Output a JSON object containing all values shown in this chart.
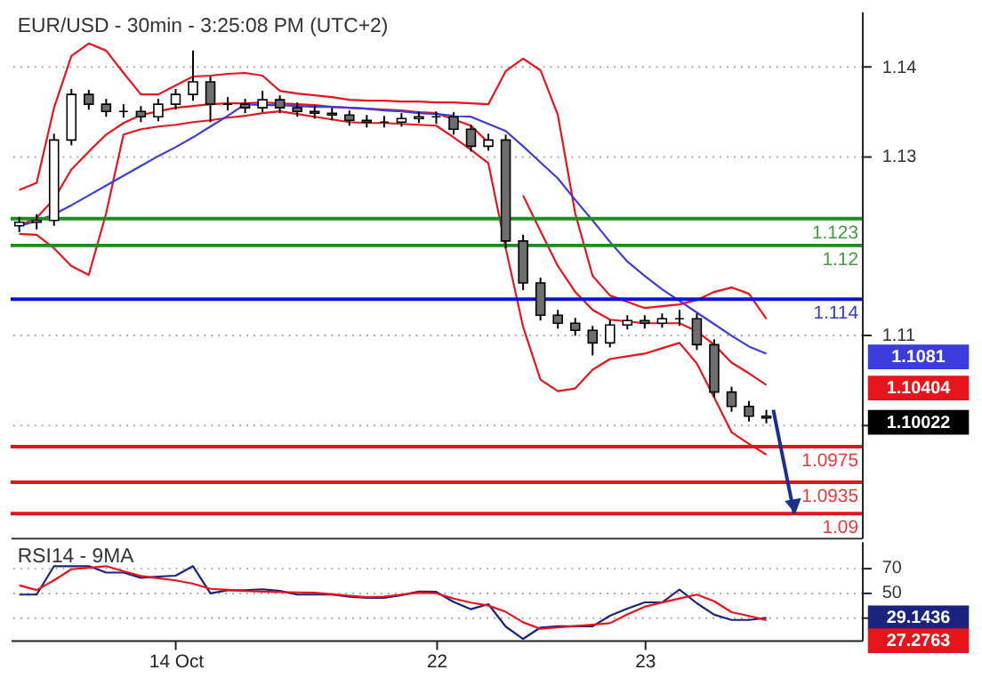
{
  "chart_data": [
    {
      "type": "candlestick",
      "title": "EUR/USD - 30min - 3:25:08 PM (UTC+2)",
      "color": "#000000",
      "categories": [
        null,
        null,
        null,
        null,
        null,
        null,
        null,
        null,
        null,
        null,
        null,
        null,
        null,
        null,
        null,
        null,
        null,
        null,
        null,
        null,
        null,
        null,
        null,
        null,
        null,
        null,
        null,
        null,
        null,
        null,
        null,
        null,
        null,
        null,
        null,
        null,
        null,
        null,
        null,
        null,
        null,
        null,
        null,
        null,
        null,
        null,
        null,
        null,
        null
      ],
      "ohlc": [
        [
          1.1222,
          1.1232,
          1.1215,
          1.1226
        ],
        [
          1.1226,
          1.1235,
          1.1218,
          1.1228
        ],
        [
          1.1228,
          1.1325,
          1.1222,
          1.1318
        ],
        [
          1.1318,
          1.1375,
          1.1312,
          1.1369
        ],
        [
          1.1369,
          1.1374,
          1.1352,
          1.1358
        ],
        [
          1.1358,
          1.1364,
          1.1344,
          1.135
        ],
        [
          1.135,
          1.1358,
          1.1343,
          1.135
        ],
        [
          1.135,
          1.1356,
          1.1338,
          1.1344
        ],
        [
          1.1344,
          1.1364,
          1.1339,
          1.1358
        ],
        [
          1.1358,
          1.1375,
          1.1352,
          1.1369
        ],
        [
          1.1369,
          1.1418,
          1.1362,
          1.1383
        ],
        [
          1.1383,
          1.1389,
          1.1338,
          1.1358
        ],
        [
          1.1358,
          1.1366,
          1.1351,
          1.1358
        ],
        [
          1.1358,
          1.1364,
          1.1348,
          1.1354
        ],
        [
          1.1354,
          1.1373,
          1.1349,
          1.1363
        ],
        [
          1.1363,
          1.1368,
          1.1348,
          1.1354
        ],
        [
          1.1354,
          1.136,
          1.1344,
          1.135
        ],
        [
          1.135,
          1.1356,
          1.1342,
          1.1348
        ],
        [
          1.1348,
          1.1354,
          1.134,
          1.1346
        ],
        [
          1.1346,
          1.1351,
          1.1334,
          1.134
        ],
        [
          1.134,
          1.1346,
          1.1332,
          1.1338
        ],
        [
          1.1338,
          1.1345,
          1.1332,
          1.1338
        ],
        [
          1.1338,
          1.1348,
          1.1333,
          1.1342
        ],
        [
          1.1342,
          1.135,
          1.1337,
          1.1344
        ],
        [
          1.1344,
          1.135,
          1.1336,
          1.1344
        ],
        [
          1.1344,
          1.1349,
          1.1324,
          1.133
        ],
        [
          1.133,
          1.1335,
          1.1305,
          1.1311
        ],
        [
          1.1311,
          1.1325,
          1.1306,
          1.1318
        ],
        [
          1.1318,
          1.1324,
          1.1197,
          1.1205
        ],
        [
          1.1205,
          1.1212,
          1.115,
          1.1158
        ],
        [
          1.1158,
          1.1164,
          1.1116,
          1.1122
        ],
        [
          1.1122,
          1.1128,
          1.1107,
          1.1113
        ],
        [
          1.1113,
          1.1119,
          1.1099,
          1.1105
        ],
        [
          1.1105,
          1.111,
          1.1077,
          1.1091
        ],
        [
          1.1091,
          1.1117,
          1.1086,
          1.1111
        ],
        [
          1.1111,
          1.1122,
          1.1106,
          1.1116
        ],
        [
          1.1116,
          1.1122,
          1.1107,
          1.1113
        ],
        [
          1.1113,
          1.1124,
          1.1108,
          1.1118
        ],
        [
          1.1118,
          1.1128,
          1.111,
          1.1118
        ],
        [
          1.1118,
          1.1124,
          1.1083,
          1.1089
        ],
        [
          1.1089,
          1.1095,
          1.103,
          1.1036
        ],
        [
          1.1036,
          1.1042,
          1.1014,
          1.102
        ],
        [
          1.102,
          1.1026,
          1.1003,
          1.1009
        ],
        [
          1.1009,
          1.1016,
          1.1001,
          1.1007
        ],
        null,
        null,
        null,
        null,
        null
      ],
      "series": [
        {
          "type": "line",
          "color": "#e8141c",
          "values": [
            1.1262,
            1.127,
            1.1354,
            1.1412,
            1.1426,
            1.1418,
            1.1393,
            1.1369,
            1.1369,
            1.1379,
            1.1389,
            1.139,
            1.1392,
            1.1393,
            1.139,
            1.1373,
            1.137,
            1.1368,
            1.1366,
            1.1363,
            1.1362,
            1.1362,
            1.1361,
            1.1361,
            1.136,
            1.136,
            1.1359,
            1.1358,
            1.1395,
            1.1409,
            1.1396,
            1.1346,
            1.1236,
            1.1166,
            1.1144,
            1.1137,
            1.113,
            1.1132,
            1.1134,
            1.1139,
            1.1148,
            1.1153,
            1.1146,
            1.1118,
            null,
            null,
            null,
            null,
            null
          ]
        },
        {
          "type": "line",
          "color": "#e8141c",
          "values": [
            1.1222,
            1.1231,
            1.1252,
            1.1285,
            1.1305,
            1.1324,
            1.1337,
            1.1346,
            1.135,
            1.1354,
            1.1356,
            1.1358,
            1.1359,
            1.1359,
            1.136,
            1.1359,
            1.1358,
            1.1357,
            1.1355,
            1.1354,
            1.1353,
            1.1352,
            1.1351,
            1.1349,
            1.1348,
            1.1341,
            1.1334,
            1.1315,
            null,
            1.1256,
            1.1216,
            1.1177,
            1.1148,
            1.1128,
            1.1117,
            1.1115,
            1.1113,
            1.1113,
            1.1113,
            1.1104,
            1.1089,
            1.1069,
            1.1057,
            1.1044,
            null,
            null,
            null,
            null,
            null
          ]
        },
        {
          "type": "line",
          "color": "#e8141c",
          "values": [
            1.1213,
            1.1212,
            1.1197,
            1.1177,
            1.1167,
            1.1236,
            1.1324,
            1.133,
            1.1333,
            1.1335,
            1.1338,
            1.134,
            1.1343,
            1.1345,
            1.1348,
            1.135,
            1.1347,
            1.1344,
            1.1341,
            1.1338,
            1.1337,
            1.1337,
            1.1336,
            1.1335,
            1.1334,
            1.1321,
            1.1307,
            1.1292,
            1.1197,
            1.1109,
            1.105,
            1.1037,
            1.104,
            1.1061,
            1.1073,
            1.1076,
            1.1079,
            1.1085,
            1.1091,
            1.1068,
            1.103,
            1.0991,
            1.0978,
            1.0966,
            null,
            null,
            null,
            null,
            null
          ]
        },
        {
          "type": "line",
          "color": "#3c3cdc",
          "values": [
            1.1222,
            1.1227,
            1.1235,
            1.1245,
            1.1256,
            1.1267,
            1.1278,
            1.1289,
            1.13,
            1.131,
            1.1321,
            1.1333,
            1.1345,
            1.1358,
            1.1357,
            1.1357,
            1.1356,
            1.1355,
            1.1355,
            1.1354,
            1.1353,
            1.1351,
            1.135,
            1.1348,
            1.1347,
            1.1345,
            1.1344,
            1.1336,
            1.1328,
            1.1311,
            1.1293,
            1.1275,
            1.1251,
            1.1228,
            1.1204,
            1.1182,
            1.1166,
            1.1151,
            1.1138,
            1.1125,
            1.1112,
            1.1099,
            1.1087,
            1.1079,
            null,
            null,
            null,
            null,
            null
          ]
        }
      ],
      "ref_lines": [
        {
          "axis": "y",
          "value": 1.123,
          "label": "1.123",
          "color": "#1e8c1e"
        },
        {
          "axis": "y",
          "value": 1.12,
          "label": "1.12",
          "color": "#1e8c1e"
        },
        {
          "axis": "y",
          "value": 1.114,
          "label": "1.114",
          "color": "#0a14d2"
        },
        {
          "axis": "y",
          "value": 1.0975,
          "label": "1.0975",
          "color": "#e8141c"
        },
        {
          "axis": "y",
          "value": 1.0935,
          "label": "1.0935",
          "color": "#e8141c"
        },
        {
          "axis": "y",
          "value": 1.09,
          "label": "1.09",
          "color": "#e8141c"
        }
      ],
      "annotations": [
        "1.1081",
        "1.10404",
        "1.10022"
      ],
      "ylim": [
        1.0873,
        1.1462
      ],
      "yticks": [
        1.14,
        1.13,
        1.11,
        {
          "value": 1.1,
          "label": null
        }
      ],
      "grid": "y",
      "tick_labels": "y"
    },
    {
      "type": "line",
      "title": "RSI14 - 9MA",
      "categories": [
        null,
        null,
        null,
        null,
        null,
        null,
        null,
        null,
        null,
        "14 Oct",
        null,
        null,
        null,
        null,
        null,
        null,
        null,
        null,
        null,
        null,
        null,
        null,
        null,
        null,
        "22",
        null,
        null,
        null,
        null,
        null,
        null,
        null,
        null,
        null,
        null,
        null,
        "23",
        null,
        null,
        null,
        null,
        null,
        null,
        null,
        null,
        null,
        null,
        null,
        null
      ],
      "series": [
        {
          "color": "#1a237e",
          "values": [
            47.9,
            47.9,
            70.9,
            70.9,
            70.9,
            65.7,
            65.7,
            61.5,
            62.5,
            63.2,
            70.9,
            48.9,
            51.4,
            51.4,
            52.2,
            50.9,
            47.9,
            47.9,
            47.9,
            46.2,
            45.3,
            45.3,
            47.5,
            50.3,
            50.1,
            42.0,
            36.1,
            40.2,
            22,
            12.1,
            21.3,
            22.3,
            22.3,
            22.3,
            30.8,
            36.6,
            41.6,
            41.6,
            52,
            40.9,
            31.6,
            27.4,
            27.4,
            29.1,
            null,
            null,
            null,
            null,
            null
          ]
        },
        {
          "color": "#e8141c",
          "values": [
            55.4,
            51.6,
            59.4,
            68.4,
            69.6,
            70.9,
            66.8,
            62.9,
            61.1,
            59.4,
            56.7,
            52.6,
            51.8,
            50.8,
            50.3,
            50.0,
            49.7,
            49.4,
            48.2,
            47.0,
            45.8,
            46.3,
            47.9,
            49.4,
            49.0,
            44.7,
            41.4,
            39.0,
            34.0,
            25.5,
            20.2,
            21.3,
            22.5,
            23.6,
            24.8,
            31.9,
            38.1,
            41.5,
            44.8,
            47.9,
            42.5,
            33.7,
            30.6,
            27.3,
            null,
            null,
            null,
            null,
            null
          ]
        }
      ],
      "annotations": [
        "29.1436",
        "27.2763"
      ],
      "ylim": [
        11,
        91
      ],
      "yticks": [
        70,
        50,
        {
          "value": 30,
          "label": null
        }
      ],
      "grid": "y"
    }
  ]
}
